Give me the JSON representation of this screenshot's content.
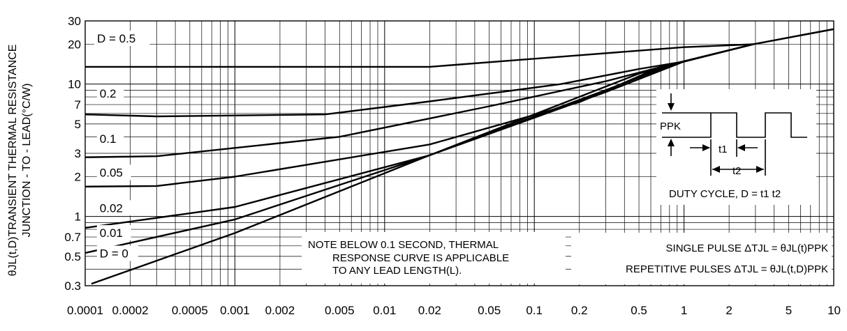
{
  "chart_data": {
    "type": "line",
    "title": "",
    "xscale": "log",
    "yscale": "log",
    "xlim": [
      0.0001,
      10
    ],
    "ylim": [
      0.3,
      30
    ],
    "grid": true,
    "ylabel_line1": "θJL(t,D)TRANSIENT THERMAL RESISTANCE",
    "ylabel_line2": "JUNCTION - TO - LEAD(°C/W)",
    "x_ticks": [
      {
        "v": 0.0001,
        "label": "0.0001"
      },
      {
        "v": 0.0002,
        "label": "0.0002"
      },
      {
        "v": 0.0005,
        "label": "0.0005"
      },
      {
        "v": 0.001,
        "label": "0.001"
      },
      {
        "v": 0.002,
        "label": "0.002"
      },
      {
        "v": 0.005,
        "label": "0.005"
      },
      {
        "v": 0.01,
        "label": "0.01"
      },
      {
        "v": 0.02,
        "label": "0.02"
      },
      {
        "v": 0.05,
        "label": "0.05"
      },
      {
        "v": 0.1,
        "label": "0.1"
      },
      {
        "v": 0.2,
        "label": "0.2"
      },
      {
        "v": 0.5,
        "label": "0.5"
      },
      {
        "v": 1,
        "label": "1"
      },
      {
        "v": 2,
        "label": "2"
      },
      {
        "v": 5,
        "label": "5"
      },
      {
        "v": 10,
        "label": "10"
      }
    ],
    "y_ticks": [
      {
        "v": 0.3,
        "label": "0.3"
      },
      {
        "v": 0.5,
        "label": "0.5"
      },
      {
        "v": 0.7,
        "label": "0.7"
      },
      {
        "v": 1,
        "label": "1"
      },
      {
        "v": 2,
        "label": "2"
      },
      {
        "v": 3,
        "label": "3"
      },
      {
        "v": 5,
        "label": "5"
      },
      {
        "v": 7,
        "label": "7"
      },
      {
        "v": 10,
        "label": "10"
      },
      {
        "v": 20,
        "label": "20"
      },
      {
        "v": 30,
        "label": "30"
      }
    ],
    "series": [
      {
        "name": "D = 0.5",
        "points": [
          [
            0.0001,
            13.5
          ],
          [
            0.02,
            13.5
          ],
          [
            0.2,
            16.5
          ],
          [
            1,
            19
          ],
          [
            2.9,
            20
          ],
          [
            10,
            26
          ]
        ]
      },
      {
        "name": "0.2",
        "points": [
          [
            0.0001,
            5.9
          ],
          [
            0.0003,
            5.7
          ],
          [
            0.004,
            5.9
          ],
          [
            0.02,
            7.4
          ],
          [
            0.15,
            10
          ],
          [
            0.5,
            13
          ],
          [
            1,
            14.8
          ],
          [
            2.9,
            20
          ]
        ]
      },
      {
        "name": "0.1",
        "points": [
          [
            0.0001,
            2.8
          ],
          [
            0.0003,
            2.85
          ],
          [
            0.005,
            4.0
          ],
          [
            0.05,
            6.8
          ],
          [
            0.3,
            10.5
          ],
          [
            0.8,
            14
          ],
          [
            2.9,
            20
          ]
        ]
      },
      {
        "name": "0.05",
        "points": [
          [
            0.0001,
            1.68
          ],
          [
            0.0003,
            1.7
          ],
          [
            0.001,
            2.0
          ],
          [
            0.02,
            3.5
          ],
          [
            0.2,
            7.3
          ],
          [
            0.7,
            13.5
          ],
          [
            1,
            14.8
          ],
          [
            2.9,
            20
          ]
        ]
      },
      {
        "name": "0.02",
        "points": [
          [
            0.0001,
            0.82
          ],
          [
            0.001,
            1.18
          ],
          [
            0.02,
            2.9
          ],
          [
            0.3,
            9
          ],
          [
            0.8,
            13.8
          ],
          [
            1,
            14.8
          ],
          [
            2.9,
            20
          ]
        ]
      },
      {
        "name": "0.01",
        "points": [
          [
            0.0001,
            0.53
          ],
          [
            0.001,
            0.95
          ],
          [
            0.02,
            2.9
          ],
          [
            0.5,
            12
          ],
          [
            1,
            14.8
          ],
          [
            2.9,
            20
          ]
        ]
      },
      {
        "name": "D = 0",
        "points": [
          [
            0.00011,
            0.31
          ],
          [
            0.001,
            0.75
          ],
          [
            0.02,
            2.9
          ],
          [
            0.3,
            8.7
          ],
          [
            1,
            14.8
          ],
          [
            2.9,
            20
          ],
          [
            10,
            26
          ]
        ]
      }
    ],
    "series_labels": [
      {
        "text": "D = 0.5",
        "x": 0.00012,
        "y": 20.6
      },
      {
        "text": "0.2",
        "x": 0.000125,
        "y": 7.9
      },
      {
        "text": "0.1",
        "x": 0.000125,
        "y": 3.6
      },
      {
        "text": "0.05",
        "x": 0.000125,
        "y": 2.0
      },
      {
        "text": "0.02",
        "x": 0.000125,
        "y": 1.08
      },
      {
        "text": "0.01",
        "x": 0.000125,
        "y": 0.7
      },
      {
        "text": "D = 0",
        "x": 0.000125,
        "y": 0.49
      }
    ],
    "annotations": {
      "note_line1": "NOTE BELOW 0.1 SECOND, THERMAL",
      "note_line2": "RESPONSE CURVE IS APPLICABLE",
      "note_line3": "TO ANY LEAD LENGTH(L).",
      "single_pulse": "SINGLE PULSE ΔTJL = θJL(t)PPK",
      "repetitive_pulses": "REPETITIVE PULSES ΔTJL = θJL(t,D)PPK",
      "ppk": "PPK",
      "t1": "t1",
      "t2": "t2",
      "duty_cycle": "DUTY CYCLE, D = t1 t2"
    }
  }
}
